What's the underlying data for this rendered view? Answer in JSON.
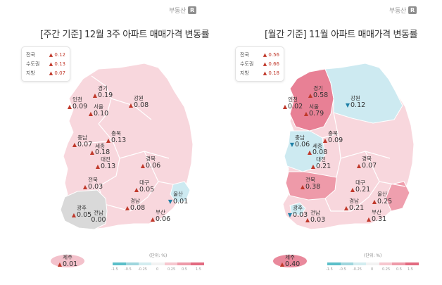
{
  "brand": {
    "name": "부동산",
    "logo_letter": "R"
  },
  "colors": {
    "up_arrow": "#c0392b",
    "down_arrow": "#1f7fa6",
    "low_rise": "#f8d7dd",
    "mid_rise": "#ef9fae",
    "high_rise": "#e06b80",
    "fall": "#cdeaf1",
    "flat": "#d9d9d9",
    "scale": [
      "#5bbfc9",
      "#9fd6dd",
      "#d3edf0",
      "#f3f3f3",
      "#f6c7cf",
      "#ee9aa9",
      "#e26a80"
    ]
  },
  "panels": [
    {
      "title": "[주간 기준] 12월 3주 아파트 매매가격 변동률",
      "summary": [
        {
          "label": "전국",
          "dir": "▲",
          "value": "0.12"
        },
        {
          "label": "수도권",
          "dir": "▲",
          "value": "0.13"
        },
        {
          "label": "지방",
          "dir": "▲",
          "value": "0.07"
        }
      ],
      "regions": {
        "gyeonggi": {
          "name": "경기",
          "dir": "▲",
          "value": "0.19"
        },
        "gangwon": {
          "name": "강원",
          "dir": "▲",
          "value": "0.08"
        },
        "incheon": {
          "name": "인천",
          "dir": "▲",
          "value": "0.09"
        },
        "seoul": {
          "name": "서울",
          "dir": "▲",
          "value": "0.10"
        },
        "chungnam": {
          "name": "충남",
          "dir": "▲",
          "value": "0.07"
        },
        "chungbuk": {
          "name": "충북",
          "dir": "▲",
          "value": "0.13"
        },
        "sejong": {
          "name": "세종",
          "dir": "▲",
          "value": "0.18"
        },
        "daejeon": {
          "name": "대전",
          "dir": "▲",
          "value": "0.13"
        },
        "gyeongbuk": {
          "name": "경북",
          "dir": "▲",
          "value": "0.06"
        },
        "jeonbuk": {
          "name": "전북",
          "dir": "▲",
          "value": "0.03"
        },
        "daegu": {
          "name": "대구",
          "dir": "▲",
          "value": "0.05"
        },
        "ulsan": {
          "name": "울산",
          "dir": "▼",
          "value": "0.01"
        },
        "gwangju": {
          "name": "광주",
          "dir": "▲",
          "value": "0.05"
        },
        "jeonnam": {
          "name": "전남",
          "dir": "",
          "value": "0.00"
        },
        "gyeongnam": {
          "name": "경남",
          "dir": "▲",
          "value": "0.08"
        },
        "busan": {
          "name": "부산",
          "dir": "▲",
          "value": "0.06"
        },
        "jeju": {
          "name": "제주",
          "dir": "▲",
          "value": "0.01"
        }
      },
      "scale": {
        "unit": "(단위: %)",
        "ticks": [
          "-1.5",
          "-0.5",
          "-0.25",
          "0",
          "0.25",
          "0.5",
          "1.5"
        ]
      }
    },
    {
      "title": "[월간 기준] 11월 아파트 매매가격 변동률",
      "summary": [
        {
          "label": "전국",
          "dir": "▲",
          "value": "0.56"
        },
        {
          "label": "수도권",
          "dir": "▲",
          "value": "0.66"
        },
        {
          "label": "지방",
          "dir": "▲",
          "value": "0.18"
        }
      ],
      "regions": {
        "gyeonggi": {
          "name": "경기",
          "dir": "▲",
          "value": "0.58"
        },
        "gangwon": {
          "name": "강원",
          "dir": "▼",
          "value": "0.12"
        },
        "incheon": {
          "name": "인천",
          "dir": "▲",
          "value": "0.02"
        },
        "seoul": {
          "name": "서울",
          "dir": "▲",
          "value": "0.79"
        },
        "chungnam": {
          "name": "충남",
          "dir": "▼",
          "value": "0.06"
        },
        "chungbuk": {
          "name": "충북",
          "dir": "▲",
          "value": "0.09"
        },
        "sejong": {
          "name": "세종",
          "dir": "▲",
          "value": "0.08"
        },
        "daejeon": {
          "name": "대전",
          "dir": "▲",
          "value": "0.21"
        },
        "gyeongbuk": {
          "name": "경북",
          "dir": "▲",
          "value": "0.07"
        },
        "jeonbuk": {
          "name": "전북",
          "dir": "▲",
          "value": "0.38"
        },
        "daegu": {
          "name": "대구",
          "dir": "▲",
          "value": "0.21"
        },
        "ulsan": {
          "name": "울산",
          "dir": "▲",
          "value": "0.25"
        },
        "gwangju": {
          "name": "광주",
          "dir": "▼",
          "value": "0.03"
        },
        "jeonnam": {
          "name": "전남",
          "dir": "▲",
          "value": "0.03"
        },
        "gyeongnam": {
          "name": "경남",
          "dir": "▲",
          "value": "0.21"
        },
        "busan": {
          "name": "부산",
          "dir": "▲",
          "value": "0.31"
        },
        "jeju": {
          "name": "제주",
          "dir": "▲",
          "value": "0.40"
        }
      },
      "scale": {
        "unit": "(단위: %)",
        "ticks": [
          "-1.5",
          "-0.5",
          "-0.25",
          "0",
          "0.25",
          "0.5",
          "1.5"
        ]
      }
    }
  ]
}
